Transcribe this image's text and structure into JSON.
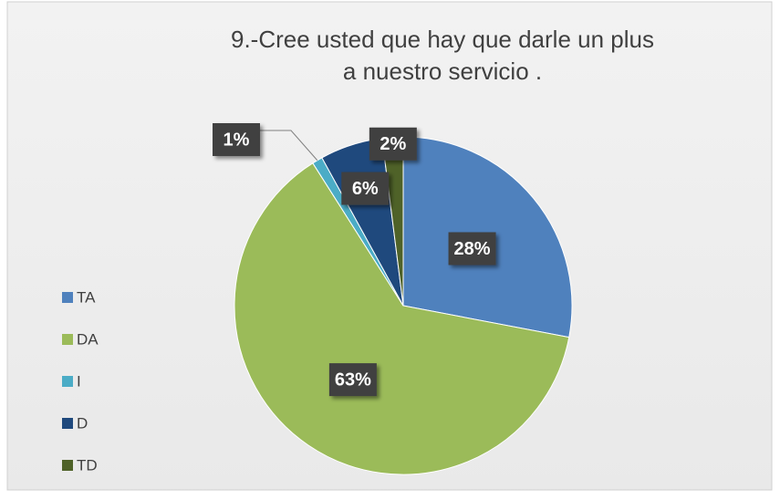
{
  "chart_data": {
    "type": "pie",
    "title": "9.-Cree usted que hay que darle un plus a nuestro servicio .",
    "categories": [
      "TA",
      "DA",
      "I",
      "D",
      "TD"
    ],
    "values": [
      28,
      63,
      1,
      6,
      2
    ],
    "value_labels": [
      "28%",
      "63%",
      "1%",
      "6%",
      "2%"
    ],
    "colors": [
      "#4f81bd",
      "#9bbb59",
      "#4bacc6",
      "#1f497d",
      "#4f6228"
    ],
    "legend": "left"
  }
}
